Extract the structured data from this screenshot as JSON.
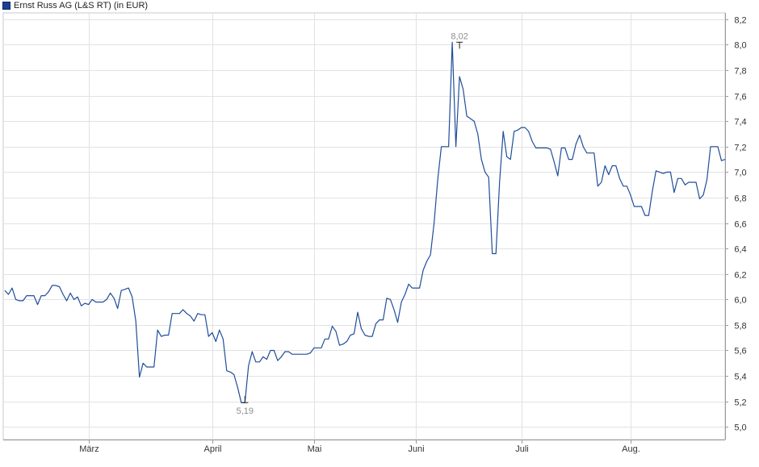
{
  "legend": {
    "label": "Ernst Russ AG (L&S RT)",
    "unit": "(in EUR)",
    "swatch_color": "#1f3f8f"
  },
  "chart_data": {
    "type": "line",
    "title": "",
    "xlabel": "",
    "ylabel": "",
    "ylim": [
      4.9,
      8.25
    ],
    "y_ticks": [
      "5,0",
      "5,2",
      "5,4",
      "5,6",
      "5,8",
      "6,0",
      "6,2",
      "6,4",
      "6,6",
      "6,8",
      "7,0",
      "7,2",
      "7,4",
      "7,6",
      "7,8",
      "8,0",
      "8,2"
    ],
    "x_month_labels": [
      "März",
      "April",
      "Mai",
      "Juni",
      "Juli",
      "Aug."
    ],
    "x_month_start_index": [
      23,
      57,
      85,
      113,
      142,
      172
    ],
    "grid": true,
    "y_axis_side": "right",
    "line_color": "#1f4e9a",
    "annotations": [
      {
        "label": "8,02",
        "value": 8.02,
        "index": 125,
        "kind": "max"
      },
      {
        "label": "5,19",
        "value": 5.19,
        "index": 66,
        "kind": "min"
      }
    ],
    "series": [
      {
        "name": "Ernst Russ AG (L&S RT)",
        "values": [
          6.07,
          6.04,
          6.09,
          6.0,
          5.99,
          5.99,
          6.03,
          6.03,
          6.03,
          5.96,
          6.03,
          6.03,
          6.06,
          6.11,
          6.11,
          6.1,
          6.04,
          5.99,
          6.05,
          6.0,
          6.02,
          5.95,
          5.97,
          5.96,
          6.0,
          5.98,
          5.98,
          5.98,
          6.0,
          6.05,
          6.01,
          5.93,
          6.07,
          6.08,
          6.09,
          6.02,
          5.83,
          5.39,
          5.5,
          5.47,
          5.47,
          5.47,
          5.76,
          5.71,
          5.72,
          5.72,
          5.89,
          5.89,
          5.89,
          5.92,
          5.89,
          5.87,
          5.83,
          5.89,
          5.88,
          5.88,
          5.71,
          5.74,
          5.67,
          5.76,
          5.69,
          5.44,
          5.43,
          5.41,
          5.31,
          5.19,
          5.19,
          5.48,
          5.59,
          5.51,
          5.51,
          5.55,
          5.53,
          5.6,
          5.6,
          5.52,
          5.55,
          5.59,
          5.59,
          5.57,
          5.57,
          5.57,
          5.57,
          5.57,
          5.58,
          5.62,
          5.62,
          5.62,
          5.69,
          5.69,
          5.79,
          5.75,
          5.64,
          5.65,
          5.67,
          5.72,
          5.73,
          5.9,
          5.77,
          5.72,
          5.71,
          5.71,
          5.81,
          5.84,
          5.84,
          6.01,
          6.0,
          5.92,
          5.82,
          5.98,
          6.04,
          6.12,
          6.09,
          6.09,
          6.09,
          6.23,
          6.3,
          6.35,
          6.6,
          6.94,
          7.2,
          7.2,
          7.2,
          8.02,
          7.2,
          7.75,
          7.65,
          7.44,
          7.42,
          7.4,
          7.3,
          7.1,
          7.0,
          6.96,
          6.36,
          6.36,
          6.92,
          7.32,
          7.12,
          7.1,
          7.32,
          7.33,
          7.35,
          7.35,
          7.32,
          7.24,
          7.19,
          7.19,
          7.19,
          7.19,
          7.18,
          7.08,
          6.97,
          7.19,
          7.19,
          7.1,
          7.1,
          7.22,
          7.29,
          7.2,
          7.15,
          7.15,
          7.15,
          6.89,
          6.92,
          7.05,
          6.98,
          7.05,
          7.05,
          6.95,
          6.89,
          6.89,
          6.82,
          6.73,
          6.73,
          6.73,
          6.66,
          6.66,
          6.85,
          7.01,
          7.0,
          6.99,
          7.0,
          7.0,
          6.84,
          6.95,
          6.95,
          6.9,
          6.92,
          6.92,
          6.92,
          6.79,
          6.82,
          6.94,
          7.2,
          7.2,
          7.2,
          7.09,
          7.1
        ]
      }
    ]
  }
}
